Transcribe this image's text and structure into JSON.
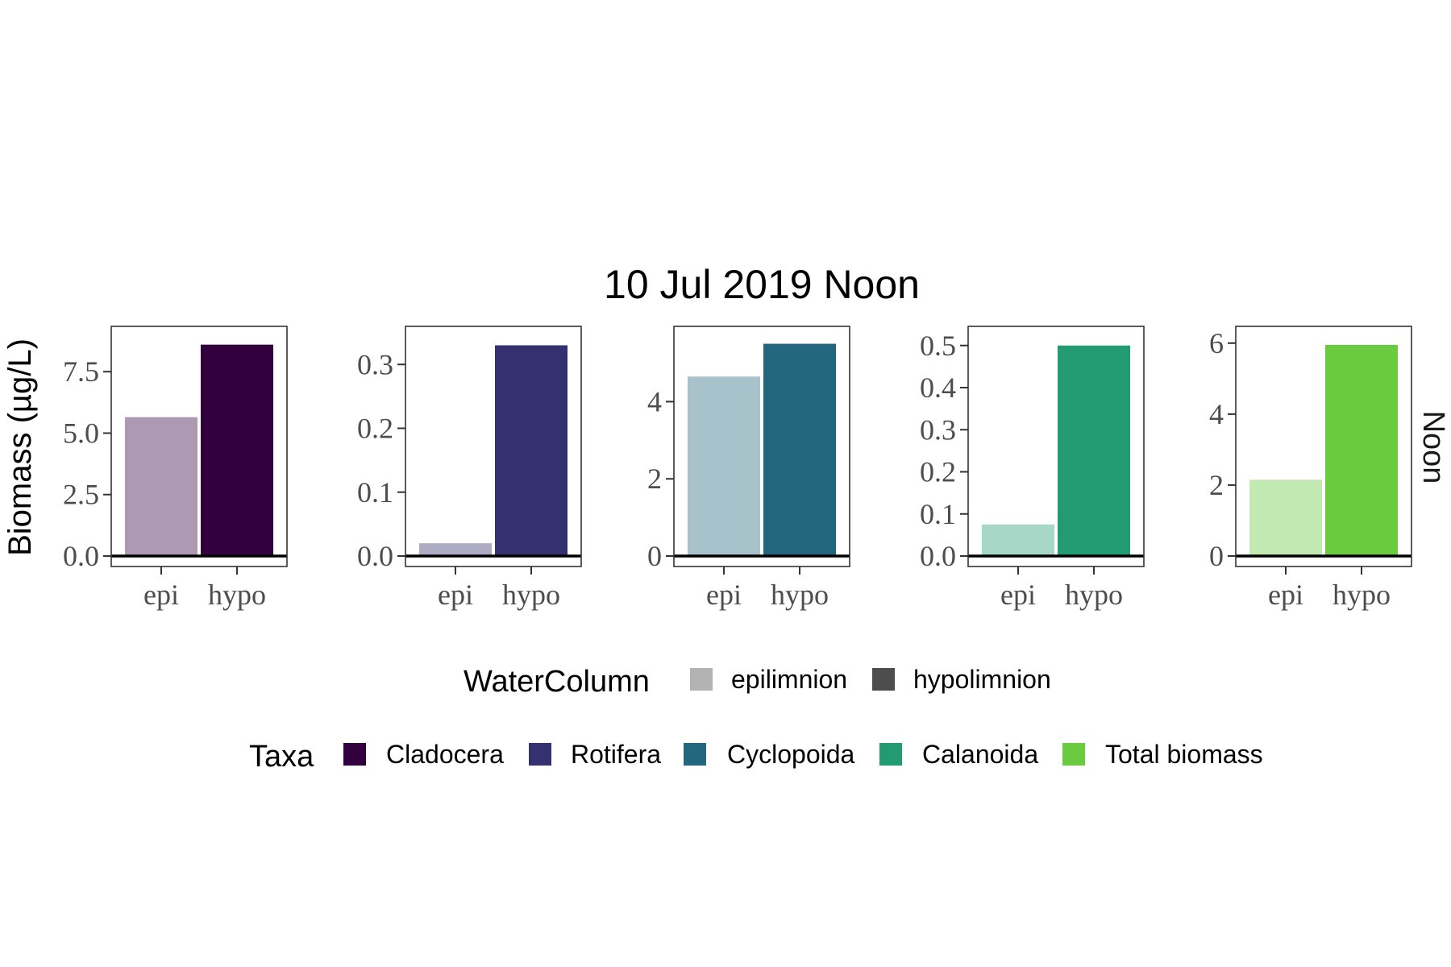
{
  "figure": {
    "title": "10 Jul 2019 Noon",
    "y_axis_label": "Biomass (µg/L)",
    "strip_label": "Noon"
  },
  "legend": {
    "watercolumn": {
      "title": "WaterColumn",
      "items": [
        {
          "label": "epilimnion",
          "color": "#b3b3b3"
        },
        {
          "label": "hypolimnion",
          "color": "#4d4d4d"
        }
      ]
    },
    "taxa": {
      "title": "Taxa",
      "items": [
        {
          "label": "Cladocera",
          "color": "#33003f"
        },
        {
          "label": "Rotifera",
          "color": "#35306f"
        },
        {
          "label": "Cyclopoida",
          "color": "#22677e"
        },
        {
          "label": "Calanoida",
          "color": "#229b73"
        },
        {
          "label": "Total biomass",
          "color": "#6acb40"
        }
      ]
    }
  },
  "chart_data": [
    {
      "type": "bar",
      "taxon": "Cladocera",
      "categories": [
        "epi",
        "hypo"
      ],
      "values": [
        5.65,
        8.6
      ],
      "colors": [
        "#ad99b2",
        "#33003f"
      ],
      "ylim": [
        0,
        8.95
      ],
      "yticks": [
        0,
        2.5,
        5,
        7.5
      ],
      "ytick_labels": [
        "0.0",
        "2.5",
        "5.0",
        "7.5"
      ]
    },
    {
      "type": "bar",
      "taxon": "Rotifera",
      "categories": [
        "epi",
        "hypo"
      ],
      "values": [
        0.02,
        0.33
      ],
      "colors": [
        "#aeacc5",
        "#35306f"
      ],
      "ylim": [
        0,
        0.3445
      ],
      "yticks": [
        0,
        0.1,
        0.2,
        0.3
      ],
      "ytick_labels": [
        "0.0",
        "0.1",
        "0.2",
        "0.3"
      ]
    },
    {
      "type": "bar",
      "taxon": "Cyclopoida",
      "categories": [
        "epi",
        "hypo"
      ],
      "values": [
        4.65,
        5.5
      ],
      "colors": [
        "#a7c2cb",
        "#22677e"
      ],
      "ylim": [
        0,
        5.7
      ],
      "yticks": [
        0,
        2,
        4
      ],
      "ytick_labels": [
        "0",
        "2",
        "4"
      ]
    },
    {
      "type": "bar",
      "taxon": "Calanoida",
      "categories": [
        "epi",
        "hypo"
      ],
      "values": [
        0.075,
        0.5
      ],
      "colors": [
        "#a7d7c7",
        "#229b73"
      ],
      "ylim": [
        0,
        0.5225
      ],
      "yticks": [
        0,
        0.1,
        0.2,
        0.3,
        0.4,
        0.5
      ],
      "ytick_labels": [
        "0.0",
        "0.1",
        "0.2",
        "0.3",
        "0.4",
        "0.5"
      ]
    },
    {
      "type": "bar",
      "taxon": "Total biomass",
      "categories": [
        "epi",
        "hypo"
      ],
      "values": [
        2.15,
        5.95
      ],
      "colors": [
        "#c3e9b3",
        "#6acb40"
      ],
      "ylim": [
        0,
        6.2
      ],
      "yticks": [
        0,
        2,
        4,
        6
      ],
      "ytick_labels": [
        "0",
        "2",
        "4",
        "6"
      ]
    }
  ]
}
